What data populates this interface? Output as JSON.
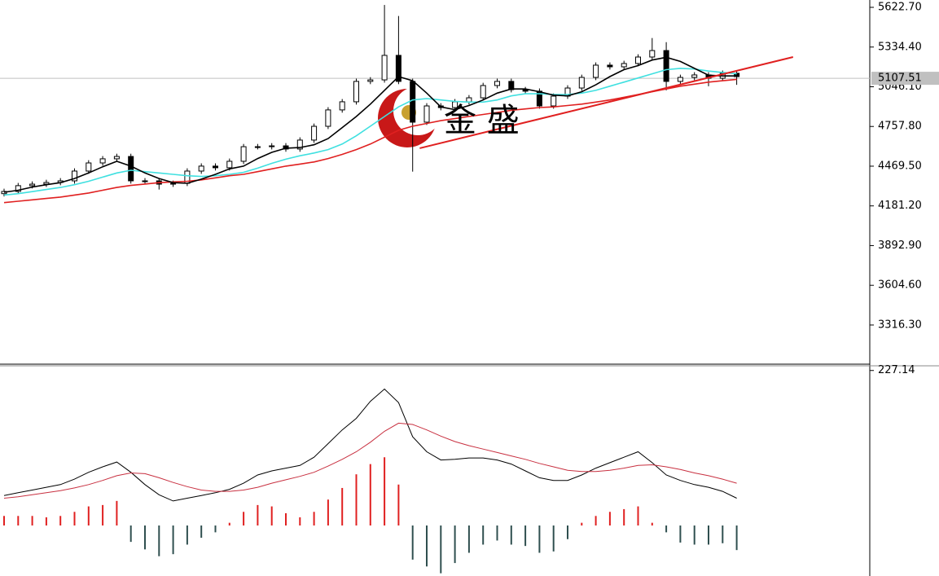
{
  "chart_data": [
    {
      "type": "candlestick",
      "watermark": "金 盛",
      "ylim": [
        3032,
        5676
      ],
      "yticks": [
        {
          "value": 5622.7,
          "label": "5622.70"
        },
        {
          "value": 5334.4,
          "label": "5334.40"
        },
        {
          "value": 5046.1,
          "label": "5046.10"
        },
        {
          "value": 4757.8,
          "label": "4757.80"
        },
        {
          "value": 4469.5,
          "label": "4469.50"
        },
        {
          "value": 4181.2,
          "label": "4181.20"
        },
        {
          "value": 3892.9,
          "label": "3892.90"
        },
        {
          "value": 3604.6,
          "label": "3604.60"
        },
        {
          "value": 3316.3,
          "label": "3316.30"
        }
      ],
      "current_price": 5107.51,
      "open": [
        4270,
        4286,
        4328,
        4339,
        4351,
        4363,
        4434,
        4493,
        4523,
        4540,
        4363,
        4363,
        4339,
        4345,
        4434,
        4470,
        4458,
        4505,
        4611,
        4611,
        4617,
        4594,
        4659,
        4759,
        4878,
        4937,
        5085,
        5096,
        5274,
        5085,
        4789,
        4907,
        4895,
        4937,
        4966,
        5055,
        5085,
        5025,
        5014,
        4907,
        4978,
        5037,
        5114,
        5203,
        5191,
        5215,
        5262,
        5309,
        5085,
        5114,
        5132,
        5108,
        5144
      ],
      "high": [
        4306,
        4348,
        4359,
        4371,
        4383,
        4454,
        4513,
        4543,
        4560,
        4560,
        4383,
        4383,
        4365,
        4454,
        4490,
        4490,
        4525,
        4631,
        4631,
        4637,
        4637,
        4679,
        4779,
        4898,
        4957,
        5105,
        5116,
        5640,
        5560,
        5105,
        4927,
        4927,
        4957,
        4986,
        5075,
        5105,
        5105,
        5045,
        5034,
        4998,
        5057,
        5134,
        5223,
        5223,
        5235,
        5282,
        5400,
        5370,
        5134,
        5152,
        5152,
        5164,
        5164
      ],
      "low": [
        4250,
        4266,
        4308,
        4319,
        4331,
        4343,
        4414,
        4473,
        4503,
        4343,
        4343,
        4300,
        4319,
        4325,
        4414,
        4438,
        4438,
        4485,
        4591,
        4591,
        4574,
        4574,
        4639,
        4739,
        4858,
        4917,
        5065,
        5076,
        5065,
        4430,
        4769,
        4875,
        4875,
        4917,
        4946,
        5035,
        5005,
        4994,
        4887,
        4887,
        4958,
        5017,
        5094,
        5171,
        5171,
        5195,
        5242,
        5020,
        5065,
        5094,
        5050,
        5088,
        5060
      ],
      "close": [
        4286,
        4328,
        4339,
        4351,
        4363,
        4434,
        4493,
        4523,
        4540,
        4363,
        4363,
        4339,
        4345,
        4434,
        4470,
        4458,
        4505,
        4611,
        4611,
        4617,
        4594,
        4659,
        4759,
        4878,
        4937,
        5085,
        5096,
        5274,
        5085,
        4789,
        4907,
        4895,
        4937,
        4966,
        5055,
        5085,
        5025,
        5014,
        4907,
        4978,
        5037,
        5114,
        5203,
        5191,
        5215,
        5262,
        5309,
        5085,
        5114,
        5132,
        5108,
        5144,
        5120
      ],
      "series": [
        {
          "color": "#000000",
          "values": [
            4280,
            4295,
            4318,
            4335,
            4350,
            4380,
            4420,
            4465,
            4505,
            4470,
            4420,
            4380,
            4350,
            4345,
            4375,
            4410,
            4450,
            4470,
            4525,
            4570,
            4600,
            4605,
            4625,
            4670,
            4750,
            4830,
            4920,
            5020,
            5120,
            5090,
            5000,
            4900,
            4880,
            4910,
            4950,
            5000,
            5030,
            5030,
            5010,
            4985,
            4980,
            5010,
            5060,
            5120,
            5170,
            5200,
            5240,
            5260,
            5230,
            5180,
            5130,
            5125,
            5125
          ]
        },
        {
          "color": "#40e0e0",
          "values": [
            4260,
            4270,
            4285,
            4300,
            4315,
            4335,
            4360,
            4390,
            4420,
            4440,
            4430,
            4420,
            4410,
            4400,
            4395,
            4400,
            4410,
            4425,
            4455,
            4490,
            4520,
            4545,
            4565,
            4590,
            4630,
            4690,
            4760,
            4830,
            4900,
            4950,
            4960,
            4950,
            4940,
            4935,
            4935,
            4950,
            4980,
            4995,
            4995,
            4990,
            4990,
            5000,
            5020,
            5050,
            5080,
            5110,
            5140,
            5170,
            5180,
            5175,
            5160,
            5150,
            5140
          ]
        },
        {
          "color": "#e02020",
          "values": [
            4205,
            4215,
            4225,
            4235,
            4245,
            4260,
            4275,
            4295,
            4315,
            4330,
            4340,
            4350,
            4355,
            4360,
            4370,
            4385,
            4400,
            4410,
            4430,
            4450,
            4470,
            4485,
            4500,
            4525,
            4555,
            4590,
            4630,
            4680,
            4730,
            4760,
            4780,
            4800,
            4815,
            4830,
            4845,
            4860,
            4875,
            4885,
            4895,
            4900,
            4910,
            4920,
            4935,
            4950,
            4970,
            4990,
            5010,
            5030,
            5050,
            5065,
            5080,
            5090,
            5100
          ]
        }
      ],
      "trendline": {
        "color": "#e02020",
        "x": [
          29.5,
          56
        ],
        "y": [
          4600,
          5262
        ]
      }
    },
    {
      "type": "macd",
      "ylim": [
        -74,
        234
      ],
      "yticks": [
        227.14
      ],
      "series": [
        {
          "color": "#000000",
          "values": [
            44,
            48,
            52,
            56,
            60,
            68,
            78,
            86,
            93,
            78,
            60,
            45,
            36,
            40,
            44,
            48,
            53,
            62,
            74,
            80,
            84,
            88,
            100,
            120,
            140,
            157,
            182,
            200,
            180,
            130,
            108,
            96,
            97,
            99,
            99,
            96,
            90,
            80,
            70,
            66,
            66,
            74,
            84,
            92,
            100,
            108,
            92,
            74,
            66,
            60,
            56,
            50,
            40
          ]
        },
        {
          "color": "#c83040",
          "values": [
            40,
            42,
            45,
            48,
            51,
            55,
            60,
            66,
            73,
            77,
            76,
            70,
            63,
            57,
            52,
            50,
            50,
            52,
            56,
            62,
            67,
            72,
            78,
            87,
            97,
            108,
            122,
            138,
            150,
            148,
            140,
            131,
            123,
            117,
            112,
            107,
            102,
            97,
            91,
            86,
            81,
            79,
            79,
            81,
            84,
            88,
            89,
            86,
            82,
            77,
            73,
            68,
            62
          ]
        }
      ],
      "histogram": {
        "colors": [
          "#e02020",
          "#2f4f4f"
        ],
        "values": [
          14,
          14,
          14,
          12,
          14,
          20,
          28,
          30,
          36,
          -24,
          -35,
          -45,
          -42,
          -28,
          -18,
          -10,
          4,
          20,
          30,
          28,
          18,
          12,
          20,
          38,
          55,
          75,
          90,
          100,
          60,
          -50,
          -60,
          -70,
          -55,
          -40,
          -28,
          -22,
          -28,
          -30,
          -40,
          -38,
          -20,
          4,
          14,
          20,
          24,
          28,
          4,
          -10,
          -25,
          -28,
          -28,
          -26,
          -36
        ]
      }
    }
  ]
}
